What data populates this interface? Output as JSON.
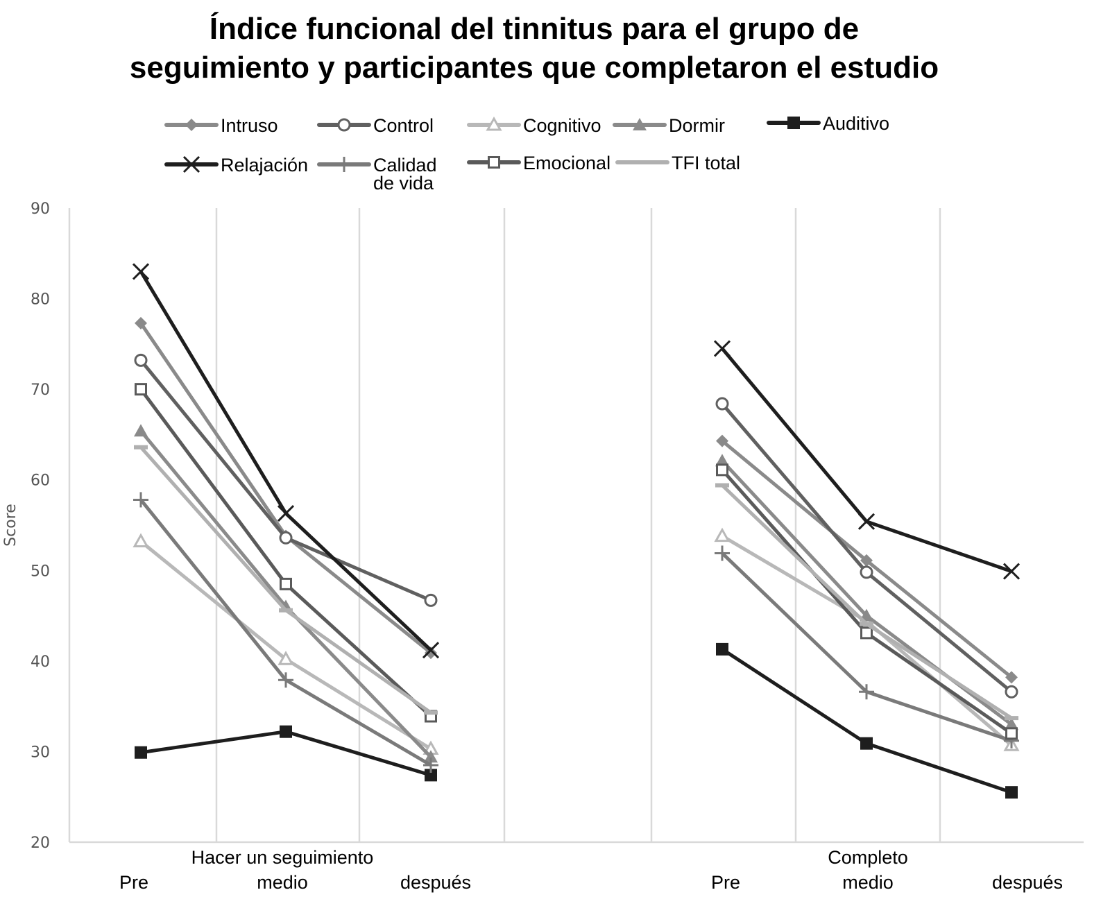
{
  "chart_data": {
    "type": "line",
    "title_line1": "Índice funcional del tinnitus para el grupo de",
    "title_line2": "seguimiento y participantes que completaron el estudio",
    "ylabel": "Score",
    "xlabel": "",
    "ylim": [
      20,
      90
    ],
    "yticks": [
      20,
      30,
      40,
      50,
      60,
      70,
      80,
      90
    ],
    "grid": "vertical",
    "legend": "top",
    "groups": [
      {
        "label": "Hacer un seguimiento",
        "categories": [
          "Pre",
          "medio",
          "después"
        ]
      },
      {
        "label": "Completo",
        "categories": [
          "Pre",
          "medio",
          "después"
        ]
      }
    ],
    "series": [
      {
        "name": "Intruso",
        "marker": "diamond",
        "color": "#8a8a8a",
        "values": [
          [
            77.3,
            53.8,
            40.9
          ],
          [
            64.3,
            51.1,
            38.2
          ]
        ]
      },
      {
        "name": "Control",
        "marker": "circle-open",
        "color": "#606060",
        "values": [
          [
            73.2,
            53.6,
            46.7
          ],
          [
            68.4,
            49.8,
            36.6
          ]
        ]
      },
      {
        "name": "Cognitivo",
        "marker": "triangle-open",
        "color": "#b8b8b8",
        "values": [
          [
            53.2,
            40.2,
            30.3
          ],
          [
            53.8,
            44.4,
            30.7
          ]
        ]
      },
      {
        "name": "Dormir",
        "marker": "triangle",
        "color": "#8a8a8a",
        "values": [
          [
            65.4,
            46.0,
            29.4
          ],
          [
            62.1,
            45.0,
            33.0
          ]
        ]
      },
      {
        "name": "Auditivo",
        "marker": "square",
        "color": "#1e1e1e",
        "values": [
          [
            29.9,
            32.2,
            27.4
          ],
          [
            41.3,
            30.9,
            25.5
          ]
        ]
      },
      {
        "name": "Relajación",
        "marker": "x",
        "color": "#1e1e1e",
        "values": [
          [
            83.0,
            56.3,
            41.2
          ],
          [
            74.5,
            55.4,
            49.9
          ]
        ]
      },
      {
        "name": "Calidad de vida",
        "name_lines": [
          "Calidad",
          "de vida"
        ],
        "marker": "plus",
        "color": "#7a7a7a",
        "values": [
          [
            57.8,
            37.9,
            28.5
          ],
          [
            51.9,
            36.6,
            31.2
          ]
        ]
      },
      {
        "name": "Emocional",
        "marker": "square-open",
        "color": "#5a5a5a",
        "values": [
          [
            70.0,
            48.5,
            33.9
          ],
          [
            61.1,
            43.1,
            32.0
          ]
        ]
      },
      {
        "name": "TFI total",
        "marker": "dash",
        "color": "#b0b0b0",
        "values": [
          [
            63.6,
            45.6,
            34.3
          ],
          [
            59.4,
            44.1,
            33.7
          ]
        ]
      }
    ]
  }
}
